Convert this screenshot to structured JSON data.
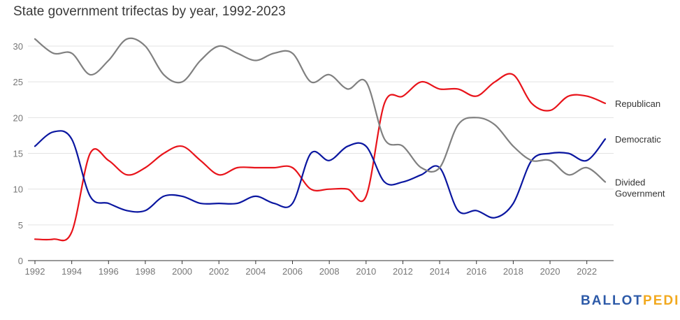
{
  "page_title": "State government trifectas by year, 1992-2023",
  "logo": {
    "part1": "BALLOT",
    "part2": "PEDIA",
    "color1": "#2d5aa8",
    "color2": "#f2a91e"
  },
  "chart_data": {
    "type": "line",
    "title": "State government trifectas by year, 1992-2023",
    "xlabel": "",
    "ylabel": "",
    "xlim": [
      1992,
      2023
    ],
    "ylim": [
      0,
      30
    ],
    "x_ticks": [
      1992,
      1994,
      1996,
      1998,
      2000,
      2002,
      2004,
      2006,
      2008,
      2010,
      2012,
      2014,
      2016,
      2018,
      2020,
      2022
    ],
    "y_ticks": [
      0,
      5,
      10,
      15,
      20,
      25,
      30
    ],
    "grid": true,
    "legend": "labels at line ends (right)",
    "x": [
      1992,
      1993,
      1994,
      1995,
      1996,
      1997,
      1998,
      1999,
      2000,
      2001,
      2002,
      2003,
      2004,
      2005,
      2006,
      2007,
      2008,
      2009,
      2010,
      2011,
      2012,
      2013,
      2014,
      2015,
      2016,
      2017,
      2018,
      2019,
      2020,
      2021,
      2022,
      2023
    ],
    "series": [
      {
        "name": "Republican",
        "color": "#e8131a",
        "values": [
          3,
          3,
          4,
          15,
          14,
          12,
          13,
          15,
          16,
          14,
          12,
          13,
          13,
          13,
          13,
          10,
          10,
          10,
          9,
          22,
          23,
          25,
          24,
          24,
          23,
          25,
          26,
          22,
          21,
          23,
          23,
          22
        ]
      },
      {
        "name": "Democratic",
        "color": "#0a16a0",
        "values": [
          16,
          18,
          17,
          9,
          8,
          7,
          7,
          9,
          9,
          8,
          8,
          8,
          9,
          8,
          8,
          15,
          14,
          16,
          16,
          11,
          11,
          12,
          13,
          7,
          7,
          6,
          8,
          14,
          15,
          15,
          14,
          17
        ]
      },
      {
        "name": "Divided Government",
        "label_lines": [
          "Divided",
          "Government"
        ],
        "color": "#808080",
        "values": [
          31,
          29,
          29,
          26,
          28,
          31,
          30,
          26,
          25,
          28,
          30,
          29,
          28,
          29,
          29,
          25,
          26,
          24,
          25,
          17,
          16,
          13,
          13,
          19,
          20,
          19,
          16,
          14,
          14,
          12,
          13,
          11
        ]
      }
    ]
  }
}
